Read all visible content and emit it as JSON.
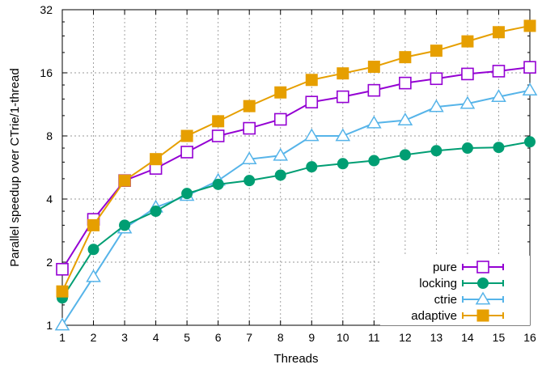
{
  "chart_data": {
    "type": "line",
    "xlabel": "Threads",
    "ylabel": "Parallel speedup over CTrie/1-thread",
    "x": [
      1,
      2,
      3,
      4,
      5,
      6,
      7,
      8,
      9,
      10,
      11,
      12,
      13,
      14,
      15,
      16
    ],
    "xlim": [
      1,
      16
    ],
    "ylim": [
      1,
      32
    ],
    "yscale": "log2",
    "yticks": [
      1,
      2,
      4,
      8,
      16,
      32
    ],
    "grid": true,
    "legend_position": "bottom-right",
    "series": [
      {
        "name": "pure",
        "color": "#9400d3",
        "marker": "open-square",
        "values": [
          1.85,
          3.2,
          4.9,
          5.6,
          6.7,
          8.0,
          8.7,
          9.6,
          11.6,
          12.3,
          13.2,
          14.3,
          15.0,
          15.8,
          16.3,
          17.0
        ]
      },
      {
        "name": "locking",
        "color": "#009e73",
        "marker": "filled-circle",
        "values": [
          1.35,
          2.3,
          3.0,
          3.5,
          4.25,
          4.7,
          4.9,
          5.2,
          5.7,
          5.9,
          6.1,
          6.5,
          6.8,
          7.0,
          7.05,
          7.5
        ]
      },
      {
        "name": "ctrie",
        "color": "#56b4e9",
        "marker": "open-triangle",
        "values": [
          1.0,
          1.7,
          2.9,
          3.65,
          4.15,
          4.9,
          6.2,
          6.45,
          8.0,
          8.0,
          9.2,
          9.5,
          11.0,
          11.4,
          12.3,
          13.2
        ]
      },
      {
        "name": "adaptive",
        "color": "#e69f00",
        "marker": "filled-square",
        "values": [
          1.45,
          3.0,
          4.9,
          6.2,
          8.0,
          9.4,
          11.1,
          12.9,
          14.8,
          15.9,
          17.1,
          19.0,
          20.4,
          22.6,
          25.0,
          26.8
        ]
      }
    ]
  }
}
